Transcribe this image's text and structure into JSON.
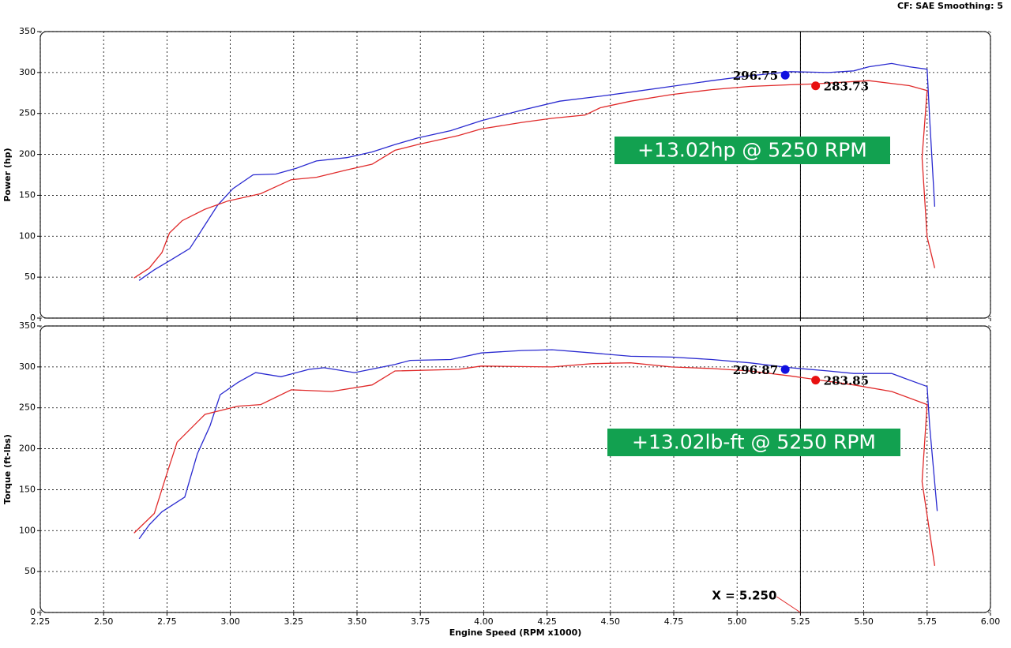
{
  "header": "CF: SAE  Smoothing: 5",
  "chart_data": [
    {
      "type": "line",
      "ylabel": "Power (hp)",
      "xlim": [
        2.25,
        6.0
      ],
      "ylim": [
        0,
        350
      ],
      "yticks": [
        0,
        50,
        100,
        150,
        200,
        250,
        300,
        350
      ],
      "grid": true,
      "annotation": "+13.02hp @ 5250 RPM",
      "cursor": {
        "x": 5.25
      },
      "markers": [
        {
          "x": 5.19,
          "value": 296.75,
          "color": "#1010e0"
        },
        {
          "x": 5.31,
          "value": 283.73,
          "color": "#e81010"
        }
      ],
      "series": [
        {
          "color": "#2a2ad0",
          "x": [
            2.64,
            2.7,
            2.76,
            2.84,
            2.89,
            2.95,
            3.01,
            3.09,
            3.18,
            3.26,
            3.34,
            3.46,
            3.56,
            3.65,
            3.74,
            3.87,
            3.99,
            4.15,
            4.3,
            4.46,
            4.58,
            4.74,
            4.9,
            5.05,
            5.21,
            5.36,
            5.46,
            5.52,
            5.61,
            5.68,
            5.75,
            5.76,
            5.78
          ],
          "values": [
            46,
            59,
            70,
            85,
            109,
            138,
            158,
            175,
            176,
            183,
            192,
            196,
            203,
            212,
            220,
            229,
            241,
            254,
            265,
            271,
            276,
            283,
            290,
            296,
            301,
            300,
            302,
            307,
            311,
            307,
            304,
            244,
            136
          ]
        },
        {
          "color": "#e02a2a",
          "x": [
            2.62,
            2.68,
            2.73,
            2.76,
            2.81,
            2.9,
            2.99,
            3.12,
            3.24,
            3.34,
            3.46,
            3.56,
            3.65,
            3.74,
            3.9,
            3.99,
            4.15,
            4.27,
            4.4,
            4.46,
            4.58,
            4.74,
            4.9,
            5.05,
            5.21,
            5.3,
            5.52,
            5.68,
            5.75,
            5.73,
            5.75,
            5.78
          ],
          "values": [
            49,
            61,
            80,
            104,
            119,
            133,
            143,
            152,
            169,
            172,
            181,
            188,
            205,
            212,
            223,
            231,
            239,
            244,
            248,
            257,
            265,
            273,
            279,
            283,
            285,
            286,
            290,
            284,
            278,
            196,
            99,
            61
          ]
        }
      ]
    },
    {
      "type": "line",
      "ylabel": "Torque (ft-lbs)",
      "xlabel": "Engine Speed (RPM x1000)",
      "xlim": [
        2.25,
        6.0
      ],
      "ylim": [
        0,
        350
      ],
      "xticks": [
        2.25,
        {
          "value": 2.5,
          "label": "2.50"
        },
        2.75,
        {
          "value": 3,
          "label": "3.00"
        },
        3.25,
        {
          "value": 3.5,
          "label": "3.50"
        },
        3.75,
        {
          "value": 4,
          "label": "4.00"
        },
        4.25,
        {
          "value": 4.5,
          "label": "4.50"
        },
        4.75,
        {
          "value": 5,
          "label": "5.00"
        },
        5.25,
        {
          "value": 5.5,
          "label": "5.50"
        },
        5.75,
        {
          "value": 6,
          "label": "6.00"
        }
      ],
      "yticks": [
        0,
        50,
        100,
        150,
        200,
        250,
        300,
        350
      ],
      "grid": true,
      "annotation": "+13.02lb-ft @ 5250 RPM",
      "cursor": {
        "x": 5.25,
        "label": "X = 5.250"
      },
      "markers": [
        {
          "x": 5.19,
          "value": 296.87,
          "color": "#1010e0"
        },
        {
          "x": 5.31,
          "value": 283.85,
          "color": "#e81010"
        }
      ],
      "series": [
        {
          "color": "#2a2ad0",
          "x": [
            2.64,
            2.68,
            2.73,
            2.82,
            2.87,
            2.92,
            2.96,
            3.03,
            3.1,
            3.2,
            3.31,
            3.37,
            3.49,
            3.65,
            3.71,
            3.87,
            3.99,
            4.15,
            4.27,
            4.43,
            4.58,
            4.74,
            4.9,
            5.05,
            5.21,
            5.36,
            5.46,
            5.61,
            5.75,
            5.76,
            5.79
          ],
          "values": [
            90,
            107,
            123,
            141,
            194,
            228,
            266,
            281,
            293,
            288,
            297,
            299,
            293,
            303,
            308,
            309,
            317,
            320,
            321,
            317,
            313,
            312,
            309,
            305,
            299,
            295,
            292,
            292,
            276,
            228,
            124
          ]
        },
        {
          "color": "#e02a2a",
          "x": [
            2.62,
            2.7,
            2.75,
            2.79,
            2.9,
            3.03,
            3.12,
            3.24,
            3.4,
            3.56,
            3.65,
            3.9,
            3.99,
            4.27,
            4.43,
            4.58,
            4.74,
            4.9,
            5.05,
            5.21,
            5.3,
            5.46,
            5.61,
            5.75,
            5.73,
            5.78
          ],
          "values": [
            97,
            121,
            170,
            208,
            242,
            252,
            254,
            272,
            270,
            278,
            295,
            297,
            301,
            300,
            304,
            305,
            300,
            298,
            295,
            289,
            285,
            278,
            270,
            254,
            160,
            57
          ]
        }
      ]
    }
  ]
}
